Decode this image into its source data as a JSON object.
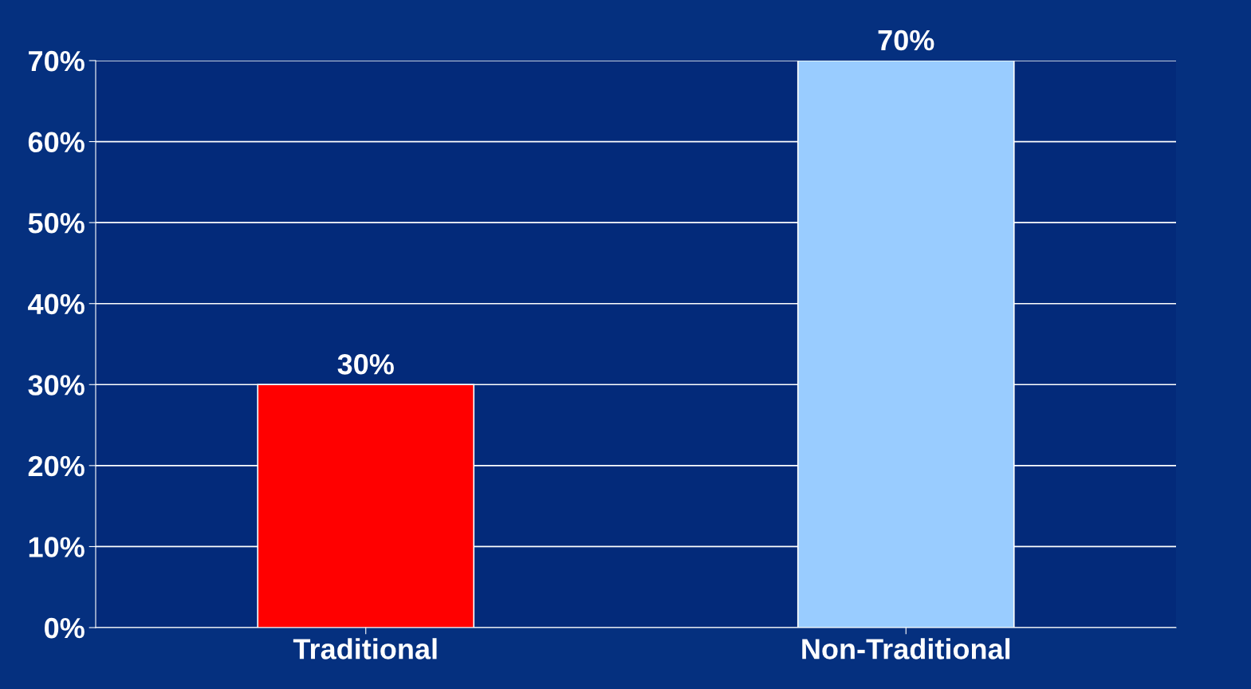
{
  "chart_data": {
    "type": "bar",
    "categories": [
      "Traditional",
      "Non-Traditional"
    ],
    "values": [
      30,
      70
    ],
    "colors": [
      "#ff0000",
      "#99ccff"
    ],
    "value_labels": [
      "30%",
      "70%"
    ],
    "ylim": [
      0,
      70
    ],
    "yticks": [
      {
        "value": 0,
        "label": "0%"
      },
      {
        "value": 10,
        "label": "10%"
      },
      {
        "value": 20,
        "label": "20%"
      },
      {
        "value": 30,
        "label": "30%"
      },
      {
        "value": 40,
        "label": "40%"
      },
      {
        "value": 50,
        "label": "50%"
      },
      {
        "value": 60,
        "label": "60%"
      },
      {
        "value": 70,
        "label": "70%"
      }
    ],
    "grid": "y",
    "legend": false
  }
}
